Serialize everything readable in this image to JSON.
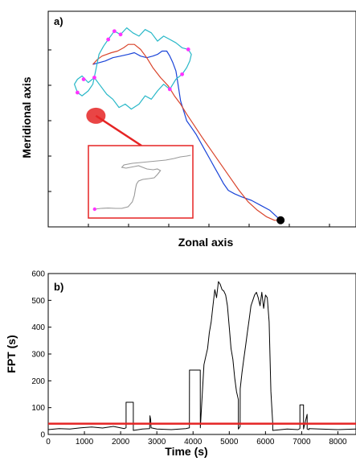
{
  "chart_data": [
    {
      "type": "line",
      "panel_label": "a)",
      "xlabel": "Zonal axis",
      "ylabel": "Meridional axis",
      "axis_ticks_labeled": false,
      "series": [
        {
          "color": "#1a44d8",
          "segment": "outbound track",
          "x": [
            7.55,
            7.2,
            6.9,
            6.6,
            6.3,
            6.05,
            5.85,
            5.7,
            5.55,
            5.4,
            5.25,
            5.1,
            4.95,
            4.8,
            4.65,
            4.5,
            4.4,
            4.3,
            4.25,
            4.2,
            4.15,
            4.05,
            3.95,
            3.85,
            3.7,
            3.55,
            3.4,
            3.2,
            3.0,
            2.8,
            2.6,
            2.35,
            2.1,
            1.85,
            1.65,
            1.45
          ],
          "y": [
            0.2,
            0.5,
            0.65,
            0.8,
            0.9,
            1.0,
            1.1,
            1.3,
            1.55,
            1.8,
            2.05,
            2.3,
            2.55,
            2.8,
            3.0,
            3.2,
            3.5,
            3.8,
            4.1,
            4.4,
            4.7,
            4.95,
            5.15,
            5.3,
            5.3,
            5.2,
            5.15,
            5.1,
            5.15,
            5.25,
            5.2,
            5.15,
            5.1,
            5.0,
            4.95,
            4.9
          ]
        },
        {
          "color": "#d9442b",
          "segment": "return track",
          "x": [
            1.45,
            1.6,
            1.75,
            1.9,
            2.05,
            2.25,
            2.45,
            2.6,
            2.8,
            3.0,
            3.2,
            3.4,
            3.65,
            3.9,
            4.1,
            4.3,
            4.5,
            4.75,
            5.0,
            5.3,
            5.6,
            5.9,
            6.2,
            6.5,
            6.8,
            7.1,
            7.35,
            7.55
          ],
          "y": [
            4.9,
            5.05,
            5.15,
            5.2,
            5.25,
            5.3,
            5.4,
            5.5,
            5.5,
            5.35,
            5.1,
            4.8,
            4.5,
            4.25,
            3.95,
            3.7,
            3.4,
            3.05,
            2.7,
            2.3,
            1.9,
            1.5,
            1.1,
            0.75,
            0.5,
            0.3,
            0.2,
            0.2
          ]
        },
        {
          "color": "#28b8c8",
          "segment": "search cluster",
          "x": [
            1.45,
            1.3,
            1.1,
            0.95,
            0.85,
            0.95,
            1.1,
            1.3,
            1.5,
            1.7,
            1.9,
            2.1,
            2.3,
            2.5,
            2.7,
            2.95,
            3.15,
            3.35,
            3.55,
            3.75,
            3.95,
            4.15,
            4.35,
            4.5,
            4.6,
            4.65,
            4.55,
            4.35,
            4.15,
            3.95,
            3.75,
            3.55,
            3.35,
            3.15,
            2.95,
            2.75,
            2.55,
            2.35,
            2.15,
            1.95,
            1.8,
            1.65,
            1.55,
            1.45
          ],
          "y": [
            4.3,
            4.1,
            3.95,
            4.05,
            4.3,
            4.45,
            4.55,
            4.35,
            4.5,
            4.25,
            4.0,
            3.85,
            3.6,
            3.7,
            3.55,
            3.7,
            3.95,
            3.85,
            4.1,
            4.3,
            4.15,
            4.45,
            4.6,
            4.8,
            5.0,
            5.2,
            5.35,
            5.4,
            5.55,
            5.65,
            5.75,
            5.6,
            5.85,
            5.95,
            5.75,
            5.85,
            6.0,
            5.8,
            5.9,
            5.65,
            5.45,
            5.2,
            4.75,
            4.3
          ]
        }
      ],
      "track_points": [
        {
          "color": "#ff33ff",
          "x": 0.95,
          "y": 4.05
        },
        {
          "color": "#ff33ff",
          "x": 1.15,
          "y": 4.45
        },
        {
          "color": "#ff33ff",
          "x": 2.15,
          "y": 5.9
        },
        {
          "color": "#ff33ff",
          "x": 1.95,
          "y": 5.65
        },
        {
          "color": "#ff33ff",
          "x": 2.35,
          "y": 5.8
        },
        {
          "color": "#ff33ff",
          "x": 3.95,
          "y": 4.15
        },
        {
          "color": "#ff33ff",
          "x": 4.55,
          "y": 5.35
        },
        {
          "color": "#ff33ff",
          "x": 4.35,
          "y": 4.6
        },
        {
          "color": "#ff33ff",
          "x": 1.5,
          "y": 4.5
        }
      ],
      "start_marker": {
        "color": "#000000",
        "x": 7.55,
        "y": 0.2
      },
      "highlight": {
        "color": "#e52424",
        "x": 1.55,
        "y": 3.35
      },
      "inset": {
        "border_color": "#e52424",
        "series": [
          {
            "color": "#999999",
            "x": [
              0.6,
              1.2,
              1.9,
              2.6,
              3.2,
              3.8,
              4.2,
              4.4,
              4.5,
              4.6,
              4.8,
              5.2,
              5.8,
              6.3,
              6.6,
              6.9,
              6.6,
              6.2,
              5.6,
              5.2,
              4.8,
              4.4,
              4.0,
              3.6,
              3.2,
              3.4,
              4.2,
              5.0,
              5.8,
              6.6,
              7.4,
              8.2,
              8.8,
              9.4,
              9.8
            ],
            "y": [
              0.55,
              0.6,
              0.62,
              0.6,
              0.6,
              0.7,
              1.0,
              1.4,
              1.8,
              2.1,
              2.3,
              2.4,
              2.45,
              2.5,
              2.7,
              2.95,
              3.05,
              3.0,
              3.05,
              3.15,
              3.25,
              3.2,
              3.15,
              3.1,
              3.15,
              3.3,
              3.4,
              3.45,
              3.5,
              3.55,
              3.6,
              3.7,
              3.8,
              3.85,
              3.9
            ]
          }
        ],
        "points": [
          {
            "color": "#ff33ff",
            "x": 0.6,
            "y": 0.55
          }
        ]
      }
    },
    {
      "type": "line",
      "panel_label": "b)",
      "xlabel": "Time (s)",
      "ylabel": "FPT (s)",
      "xlim": [
        0,
        8500
      ],
      "ylim": [
        0,
        600
      ],
      "xticks": [
        0,
        1000,
        2000,
        3000,
        4000,
        5000,
        6000,
        7000,
        8000
      ],
      "yticks": [
        0,
        100,
        200,
        300,
        400,
        500,
        600
      ],
      "threshold": {
        "value": 40,
        "color": "#e52424"
      },
      "series": [
        {
          "color": "#000000",
          "x": [
            0,
            300,
            600,
            900,
            1200,
            1500,
            1800,
            2100,
            2150,
            2151,
            2350,
            2351,
            2600,
            2800,
            2810,
            2830,
            2840,
            3000,
            3400,
            3800,
            3900,
            3901,
            4200,
            4201,
            4300,
            4350,
            4400,
            4450,
            4500,
            4550,
            4600,
            4650,
            4700,
            4750,
            4800,
            4850,
            4900,
            4950,
            5000,
            5050,
            5100,
            5150,
            5200,
            5250,
            5251,
            5300,
            5301,
            5350,
            5400,
            5450,
            5500,
            5550,
            5600,
            5650,
            5700,
            5750,
            5800,
            5850,
            5900,
            5950,
            6000,
            6050,
            6100,
            6150,
            6200,
            6201,
            6600,
            6900,
            6950,
            6951,
            7050,
            7051,
            7150,
            7151,
            7200,
            7201,
            7500,
            8000,
            8500
          ],
          "y": [
            18,
            22,
            20,
            25,
            28,
            24,
            30,
            22,
            25,
            120,
            120,
            15,
            20,
            22,
            70,
            55,
            25,
            20,
            18,
            22,
            25,
            240,
            240,
            25,
            260,
            290,
            320,
            380,
            420,
            480,
            540,
            510,
            570,
            560,
            540,
            535,
            520,
            480,
            400,
            320,
            280,
            210,
            160,
            130,
            20,
            30,
            170,
            230,
            280,
            330,
            380,
            430,
            480,
            500,
            520,
            530,
            510,
            480,
            530,
            470,
            520,
            510,
            420,
            160,
            40,
            15,
            20,
            18,
            22,
            110,
            110,
            20,
            75,
            20,
            18,
            22,
            20,
            18,
            20
          ]
        }
      ]
    }
  ]
}
